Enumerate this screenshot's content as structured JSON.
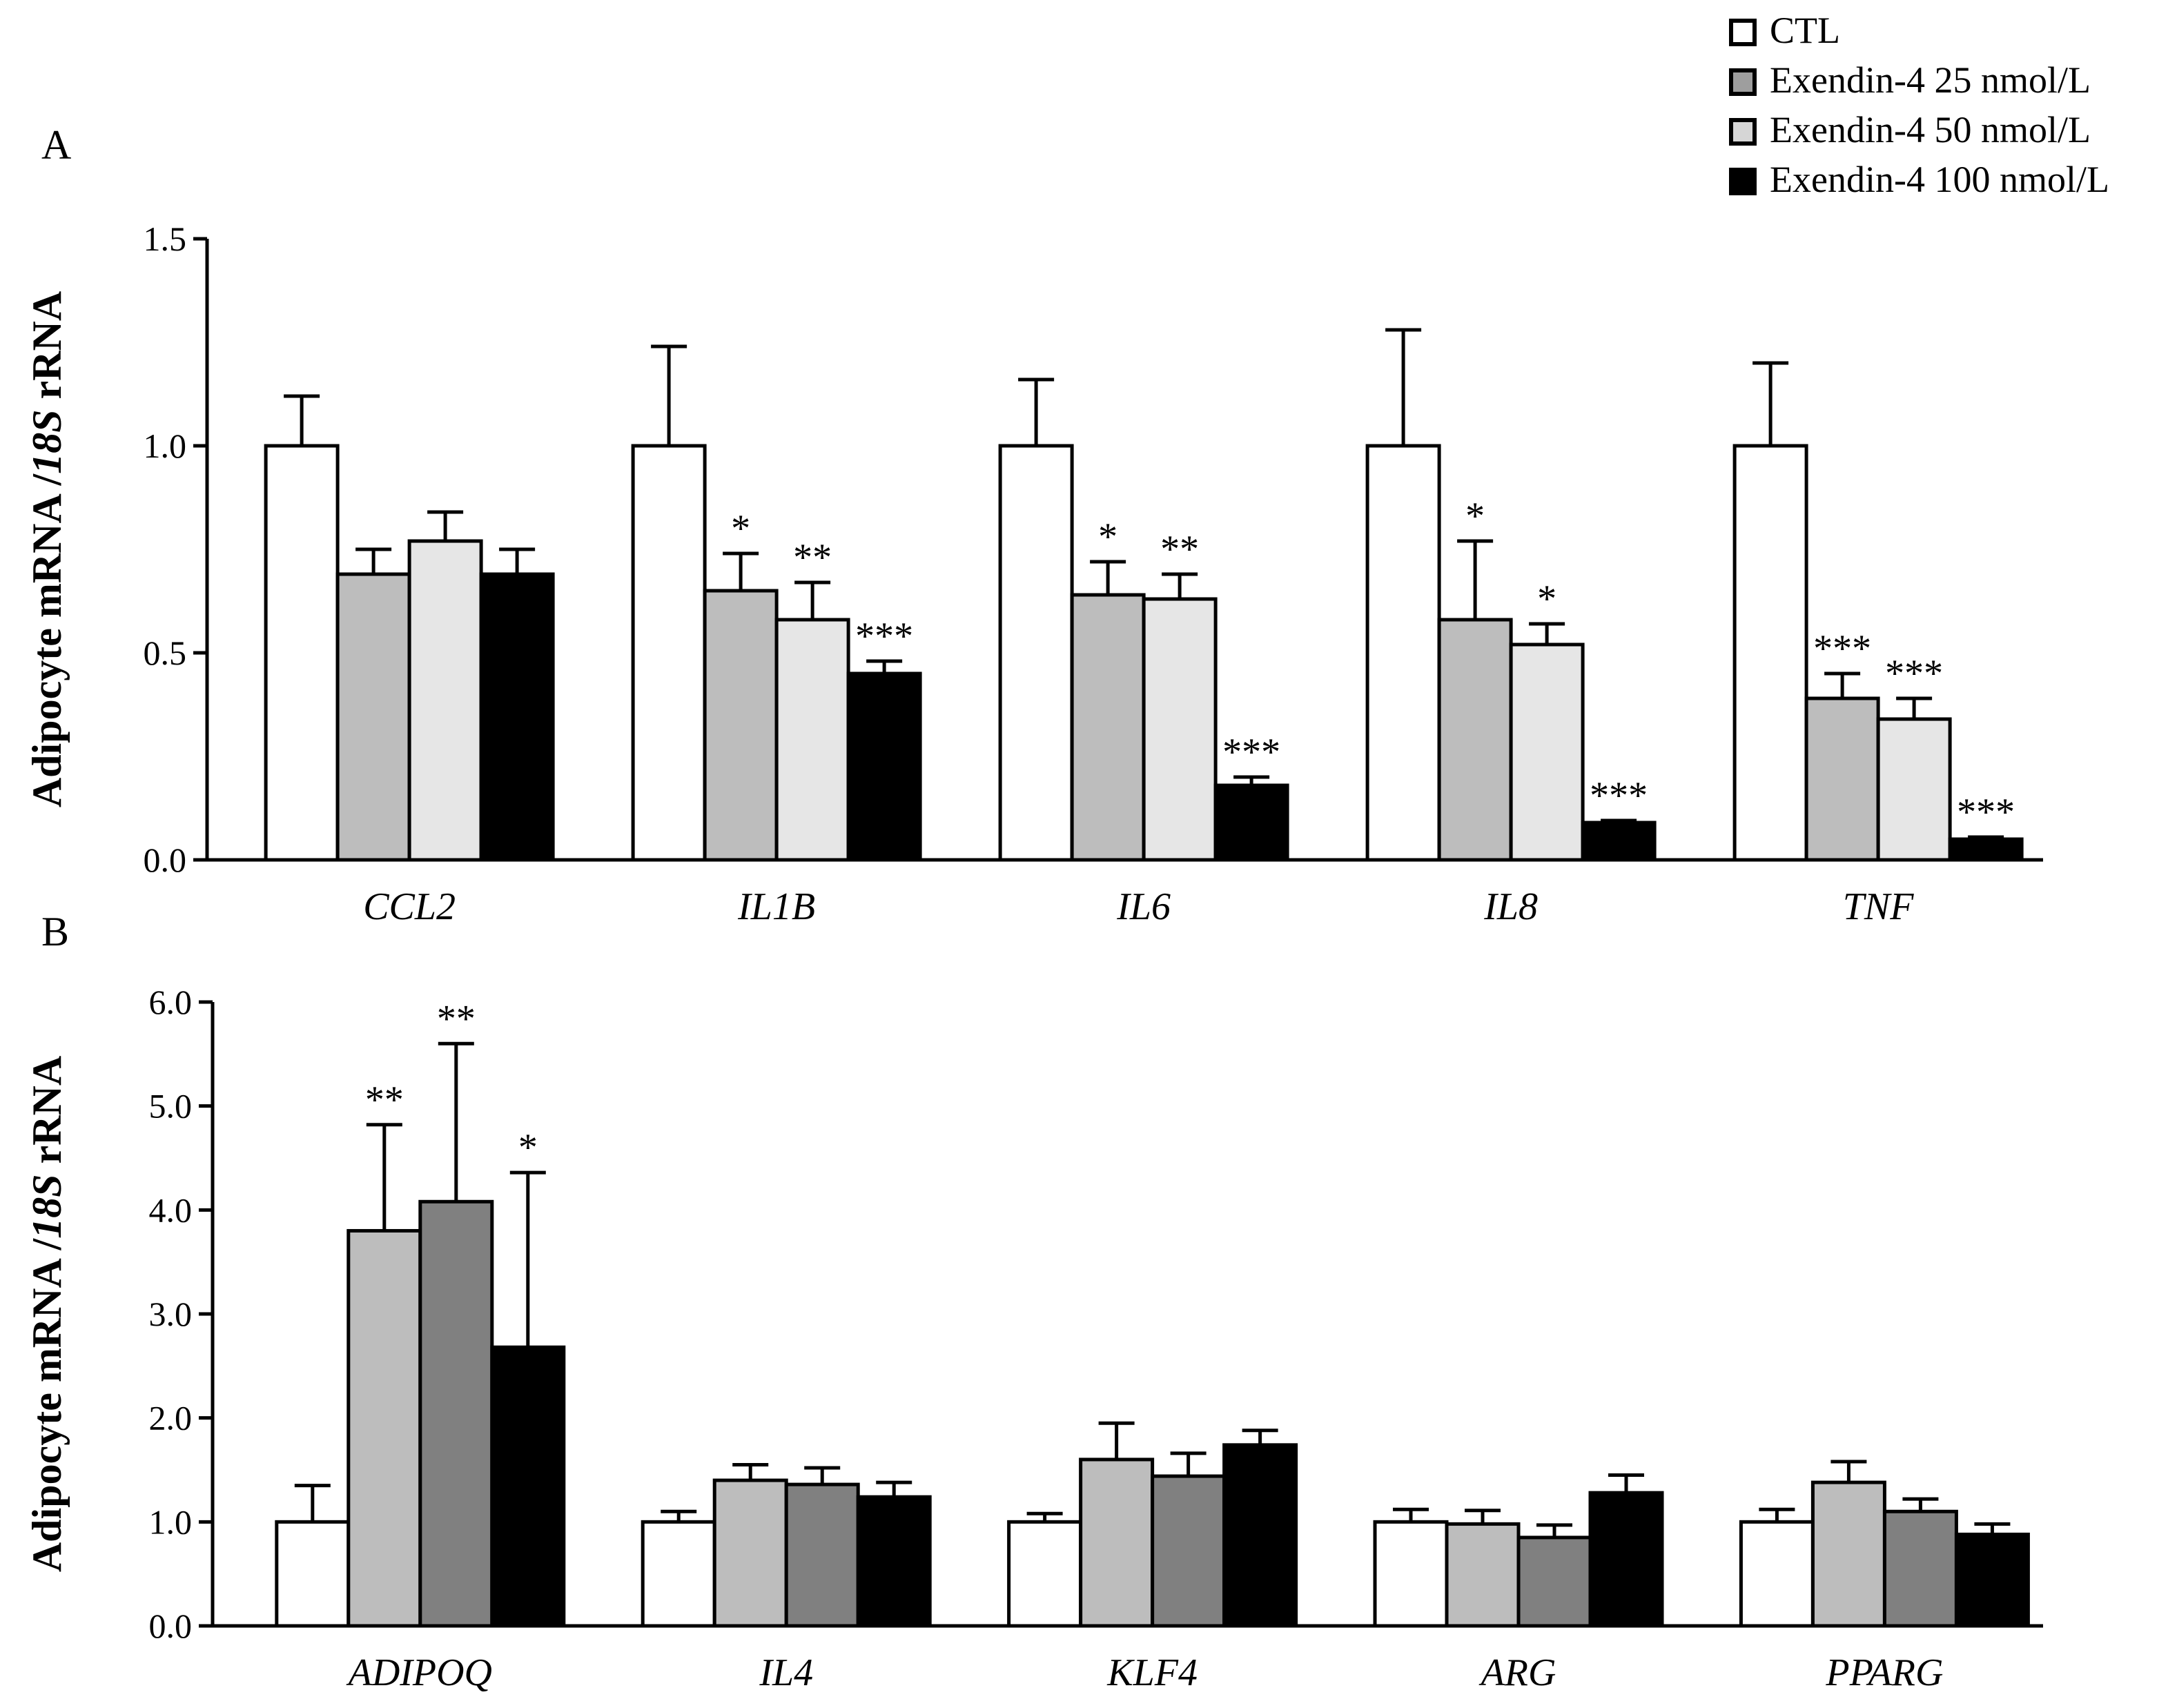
{
  "chart_data": [
    {
      "panel": "A",
      "type": "bar",
      "ylabel": "Adipocyte mRNA /18S rRNA",
      "ylabel_parts": [
        "Adipocyte mRNA /",
        "18S",
        " rRNA"
      ],
      "ylim": [
        0,
        1.5
      ],
      "yticks": [
        0.0,
        0.5,
        1.0,
        1.5
      ],
      "ytick_labels": [
        "0.0",
        "0.5",
        "1.0",
        "1.5"
      ],
      "categories": [
        "CCL2",
        "IL1B",
        "IL6",
        "IL8",
        "TNF"
      ],
      "series": [
        {
          "name": "CTL",
          "color": "#ffffff",
          "values": [
            1.0,
            1.0,
            1.0,
            1.0,
            1.0
          ],
          "errors": [
            0.12,
            0.24,
            0.16,
            0.28,
            0.2
          ],
          "sig": [
            "",
            "",
            "",
            "",
            ""
          ]
        },
        {
          "name": "Exendin-4 25 nmol/L",
          "color": "#bdbdbd",
          "values": [
            0.69,
            0.65,
            0.64,
            0.58,
            0.39
          ],
          "errors": [
            0.06,
            0.09,
            0.08,
            0.19,
            0.06
          ],
          "sig": [
            "",
            "*",
            "*",
            "*",
            "***"
          ]
        },
        {
          "name": "Exendin-4 50 nmol/L",
          "color": "#e6e6e6",
          "values": [
            0.77,
            0.58,
            0.63,
            0.52,
            0.34
          ],
          "errors": [
            0.07,
            0.09,
            0.06,
            0.05,
            0.05
          ],
          "sig": [
            "",
            "**",
            "**",
            "*",
            "***"
          ]
        },
        {
          "name": "Exendin-4 100 nmol/L",
          "color": "#000000",
          "values": [
            0.69,
            0.45,
            0.18,
            0.09,
            0.05
          ],
          "errors": [
            0.06,
            0.03,
            0.02,
            0.005,
            0.005
          ],
          "sig": [
            "",
            "***",
            "***",
            "***",
            "***"
          ]
        }
      ]
    },
    {
      "panel": "B",
      "type": "bar",
      "ylabel": "Adipocyte mRNA /18S rRNA",
      "ylabel_parts": [
        "Adipocyte mRNA /",
        "18S",
        " rRNA"
      ],
      "ylim": [
        0,
        6
      ],
      "yticks": [
        0,
        1,
        2,
        3,
        4,
        5,
        6
      ],
      "ytick_labels": [
        "0.0",
        "1.0",
        "2.0",
        "3.0",
        "4.0",
        "5.0",
        "6.0"
      ],
      "categories": [
        "ADIPOQ",
        "IL4",
        "KLF4",
        "ARG",
        "PPARG"
      ],
      "series": [
        {
          "name": "CTL",
          "color": "#ffffff",
          "values": [
            1.0,
            1.0,
            1.0,
            1.0,
            1.0
          ],
          "errors": [
            0.35,
            0.1,
            0.08,
            0.12,
            0.12
          ],
          "sig": [
            "",
            "",
            "",
            "",
            ""
          ]
        },
        {
          "name": "Exendin-4 25 nmol/L",
          "color": "#bdbdbd",
          "values": [
            3.8,
            1.4,
            1.6,
            0.98,
            1.38
          ],
          "errors": [
            1.02,
            0.15,
            0.35,
            0.13,
            0.2
          ],
          "sig": [
            "**",
            "",
            "",
            "",
            ""
          ]
        },
        {
          "name": "Exendin-4 50 nmol/L",
          "color": "#808080",
          "values": [
            4.08,
            1.36,
            1.44,
            0.85,
            1.1
          ],
          "errors": [
            1.52,
            0.16,
            0.22,
            0.12,
            0.12
          ],
          "sig": [
            "**",
            "",
            "",
            "",
            ""
          ]
        },
        {
          "name": "Exendin-4 100 nmol/L",
          "color": "#000000",
          "values": [
            2.68,
            1.24,
            1.74,
            1.28,
            0.88
          ],
          "errors": [
            1.68,
            0.14,
            0.14,
            0.17,
            0.1
          ],
          "sig": [
            "*",
            "",
            "",
            "",
            ""
          ]
        }
      ]
    }
  ],
  "legend": [
    {
      "label": "CTL",
      "color": "#ffffff"
    },
    {
      "label": "Exendin-4 25 nmol/L",
      "color": "#9e9e9e"
    },
    {
      "label": "Exendin-4 50 nmol/L",
      "color": "#d6d6d6"
    },
    {
      "label": "Exendin-4 100 nmol/L",
      "color": "#000000"
    }
  ]
}
